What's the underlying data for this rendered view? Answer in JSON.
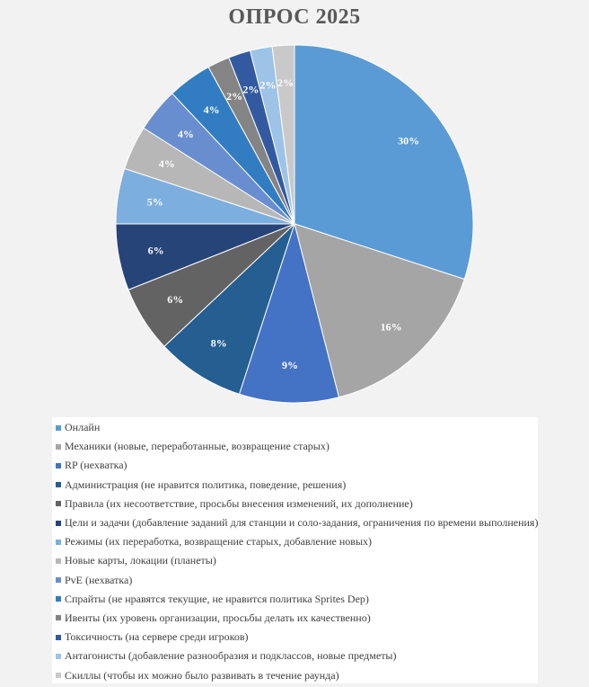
{
  "chart_data": {
    "type": "pie",
    "title": "ОПРОС 2025",
    "categories": [
      "Онлайн",
      "Механики (новые, переработанные, возвращение старых)",
      "RP (нехватка)",
      "Администрация (не нравится политика, поведение, решения)",
      "Правила (их несоответствие, просьбы внесения изменений, их дополнение)",
      "Цели и задачи (добавление заданий для станции и соло-задания, ограничения по времени выполнения)",
      "Режимы (их переработка, возвращение старых, добавление новых)",
      "Новые карты, локации (планеты)",
      "PvE (нехватка)",
      "Спрайты (не нравятся текущие, не нравится политика Sprites Dep)",
      "Ивенты (их уровень организации, просьбы делать их качественно)",
      "Токсичность (на сервере среди игроков)",
      "Антагонисты (добавление разнообразия и подклассов, новые предметы)",
      "Скиллы (чтобы их можно было развивать в течение раунда)"
    ],
    "values": [
      30,
      16,
      9,
      8,
      6,
      6,
      5,
      4,
      4,
      4,
      2,
      2,
      2,
      2
    ],
    "labels": [
      "30%",
      "16%",
      "9%",
      "8%",
      "6%",
      "6%",
      "5%",
      "4%",
      "4%",
      "4%",
      "2%",
      "2%",
      "2%",
      "2%"
    ],
    "colors": [
      "#5b9bd5",
      "#a5a5a5",
      "#4472c4",
      "#255e91",
      "#636363",
      "#264478",
      "#7cafdd",
      "#b7b7b7",
      "#698ed0",
      "#327dc2",
      "#848484",
      "#335aa1",
      "#9dc3e6",
      "#c9c9c9"
    ],
    "legend_position": "bottom"
  }
}
